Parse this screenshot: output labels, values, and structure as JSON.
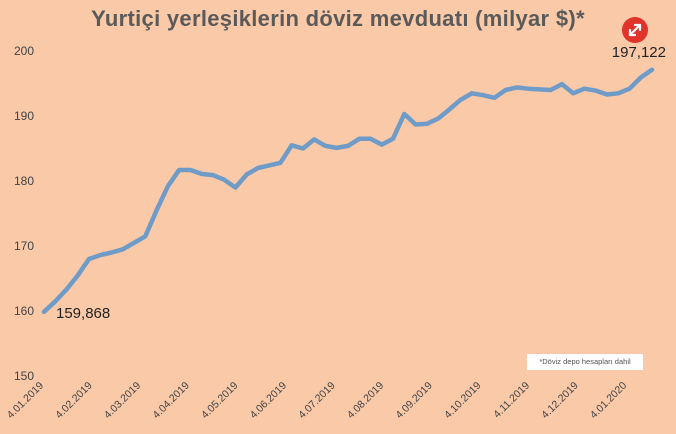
{
  "chart_data": {
    "type": "line",
    "title": "Yurtiçi yerleşiklerin döviz mevduatı (milyar $)*",
    "footnote": "*Döviz depo hesapları dahil",
    "xlabel": "",
    "ylabel": "",
    "ylim": [
      150,
      200
    ],
    "yticks": [
      150,
      160,
      170,
      180,
      190,
      200
    ],
    "xtick_labels": [
      "4.01.2019",
      "4.02.2019",
      "4.03.2019",
      "4.04.2019",
      "4.05.2019",
      "4.06.2019",
      "4.07.2019",
      "4.08.2019",
      "4.09.2019",
      "4.10.2019",
      "4.11.2019",
      "4.12.2019",
      "4.01.2020"
    ],
    "grid": false,
    "line_color": "#6f9bc8",
    "annotations": [
      {
        "text": "159,868",
        "at": "first"
      },
      {
        "text": "197,122",
        "at": "last"
      }
    ],
    "series": [
      {
        "values": [
          159.868,
          161.5,
          163.3,
          165.5,
          168.0,
          168.6,
          169.0,
          169.5,
          170.5,
          171.5,
          175.5,
          179.2,
          181.7,
          181.7,
          181.1,
          180.9,
          180.2,
          179.0,
          181.0,
          182.0,
          182.4,
          182.8,
          185.5,
          185.0,
          186.4,
          185.4,
          185.1,
          185.4,
          186.5,
          186.5,
          185.6,
          186.5,
          190.3,
          188.7,
          188.8,
          189.6,
          191.0,
          192.5,
          193.5,
          193.2,
          192.8,
          194.0,
          194.4,
          194.2,
          194.1,
          194.0,
          194.9,
          193.5,
          194.2,
          193.9,
          193.3,
          193.5,
          194.2,
          195.9,
          197.122
        ]
      }
    ]
  },
  "ui": {
    "expand_icon": "expand-arrows-icon",
    "expand_color": "#e0332b"
  }
}
